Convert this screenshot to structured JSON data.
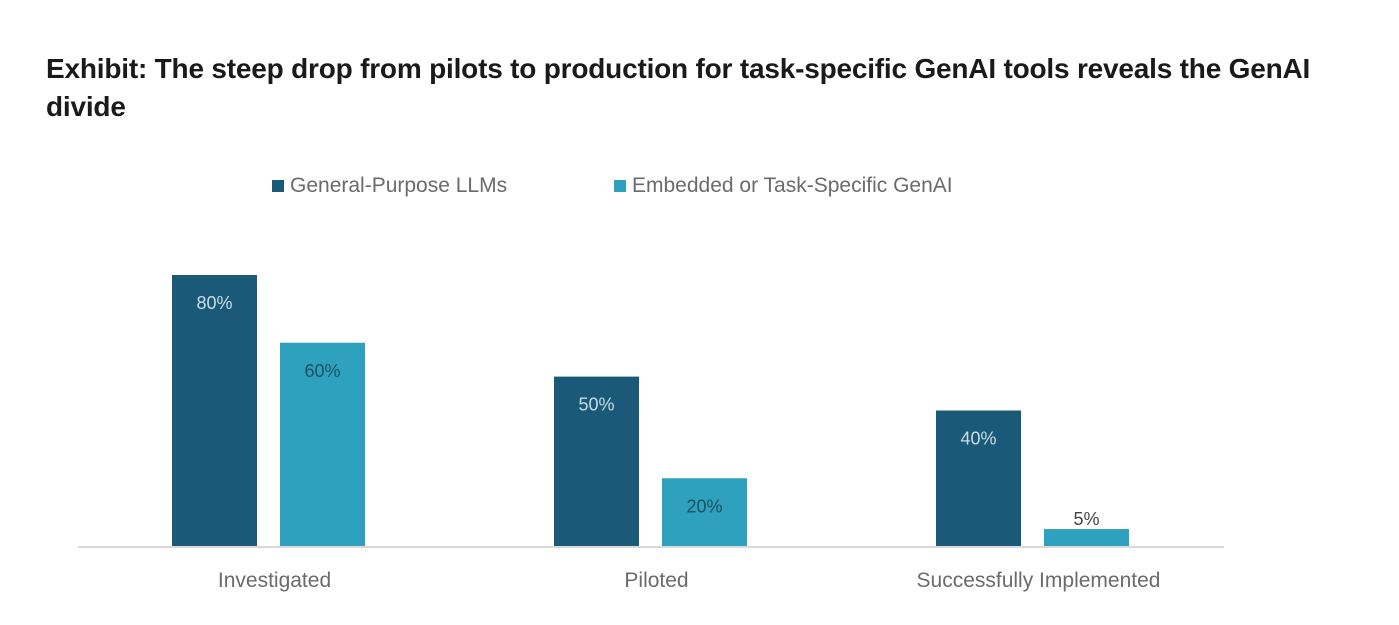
{
  "title": "Exhibit: The steep drop from pilots to production for task-specific GenAI tools reveals the GenAI divide",
  "colors": {
    "series_0": "#1a5a78",
    "series_1": "#2da1be",
    "axis": "#d9d9d9",
    "label_on_dark": "#c8dde6",
    "label_on_light": "#1f4f63",
    "label_outside": "#444444"
  },
  "chart_data": {
    "type": "bar",
    "title": "Exhibit: The steep drop from pilots to production for task-specific GenAI tools reveals the GenAI divide",
    "categories": [
      "Investigated",
      "Piloted",
      "Successfully Implemented"
    ],
    "series": [
      {
        "name": "General-Purpose LLMs",
        "values": [
          80,
          50,
          40
        ],
        "labels": [
          "80%",
          "50%",
          "40%"
        ]
      },
      {
        "name": "Embedded or Task-Specific GenAI",
        "values": [
          60,
          20,
          5
        ],
        "labels": [
          "60%",
          "20%",
          "5%"
        ]
      }
    ],
    "ylim": [
      0,
      80
    ],
    "grid": false,
    "legend": "top-center",
    "xlabel": "",
    "ylabel": ""
  }
}
